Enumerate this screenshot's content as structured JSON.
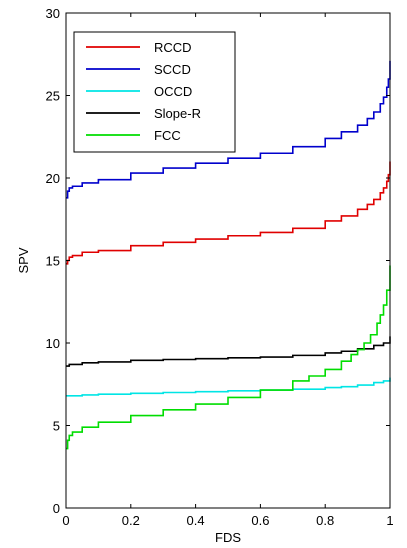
{
  "chart_data": {
    "type": "line",
    "xlabel": "FDS",
    "ylabel": "SPV",
    "xlim": [
      0,
      1
    ],
    "ylim": [
      0,
      30
    ],
    "xticks": [
      "0",
      "0.2",
      "0.4",
      "0.6",
      "0.8",
      "1"
    ],
    "yticks": [
      "0",
      "5",
      "10",
      "15",
      "20",
      "25",
      "30"
    ],
    "grid": false,
    "legend_position": "top-left",
    "series": [
      {
        "name": "RCCD",
        "color": "#e00000",
        "x": [
          0,
          0.005,
          0.01,
          0.02,
          0.05,
          0.1,
          0.2,
          0.3,
          0.4,
          0.5,
          0.6,
          0.7,
          0.8,
          0.85,
          0.9,
          0.93,
          0.95,
          0.97,
          0.98,
          0.99,
          0.995,
          1
        ],
        "y": [
          14.8,
          15.0,
          15.2,
          15.3,
          15.5,
          15.6,
          15.9,
          16.1,
          16.3,
          16.5,
          16.7,
          16.95,
          17.4,
          17.7,
          18.1,
          18.4,
          18.7,
          19.1,
          19.4,
          19.8,
          20.2,
          21.0
        ]
      },
      {
        "name": "SCCD",
        "color": "#0000cc",
        "x": [
          0,
          0.005,
          0.01,
          0.02,
          0.05,
          0.1,
          0.2,
          0.3,
          0.4,
          0.5,
          0.6,
          0.7,
          0.8,
          0.85,
          0.9,
          0.93,
          0.95,
          0.97,
          0.98,
          0.99,
          0.995,
          1
        ],
        "y": [
          18.8,
          19.2,
          19.4,
          19.5,
          19.7,
          19.9,
          20.3,
          20.6,
          20.9,
          21.2,
          21.5,
          21.9,
          22.4,
          22.8,
          23.2,
          23.6,
          24.0,
          24.5,
          24.9,
          25.5,
          26.0,
          27.1
        ]
      },
      {
        "name": "OCCD",
        "color": "#00e5e5",
        "x": [
          0,
          0.01,
          0.05,
          0.1,
          0.2,
          0.3,
          0.4,
          0.5,
          0.6,
          0.7,
          0.8,
          0.85,
          0.9,
          0.95,
          0.98,
          1
        ],
        "y": [
          6.8,
          6.8,
          6.85,
          6.9,
          6.95,
          7.0,
          7.05,
          7.1,
          7.15,
          7.2,
          7.3,
          7.35,
          7.45,
          7.6,
          7.7,
          7.9
        ]
      },
      {
        "name": "Slope-R",
        "color": "#000000",
        "x": [
          0,
          0.01,
          0.05,
          0.1,
          0.2,
          0.3,
          0.4,
          0.5,
          0.6,
          0.7,
          0.8,
          0.85,
          0.9,
          0.95,
          0.98,
          1
        ],
        "y": [
          8.6,
          8.7,
          8.8,
          8.85,
          8.95,
          9.0,
          9.05,
          9.1,
          9.15,
          9.25,
          9.4,
          9.5,
          9.65,
          9.85,
          10.0,
          10.4
        ]
      },
      {
        "name": "FCC",
        "color": "#00dd00",
        "x": [
          0,
          0.005,
          0.01,
          0.02,
          0.05,
          0.1,
          0.2,
          0.3,
          0.4,
          0.5,
          0.6,
          0.7,
          0.75,
          0.8,
          0.85,
          0.88,
          0.9,
          0.92,
          0.94,
          0.96,
          0.97,
          0.98,
          0.99,
          1
        ],
        "y": [
          3.6,
          4.1,
          4.4,
          4.6,
          4.9,
          5.2,
          5.6,
          5.95,
          6.3,
          6.7,
          7.15,
          7.7,
          8.0,
          8.4,
          8.9,
          9.3,
          9.6,
          10.0,
          10.5,
          11.2,
          11.7,
          12.3,
          13.2,
          14.7
        ]
      }
    ]
  }
}
